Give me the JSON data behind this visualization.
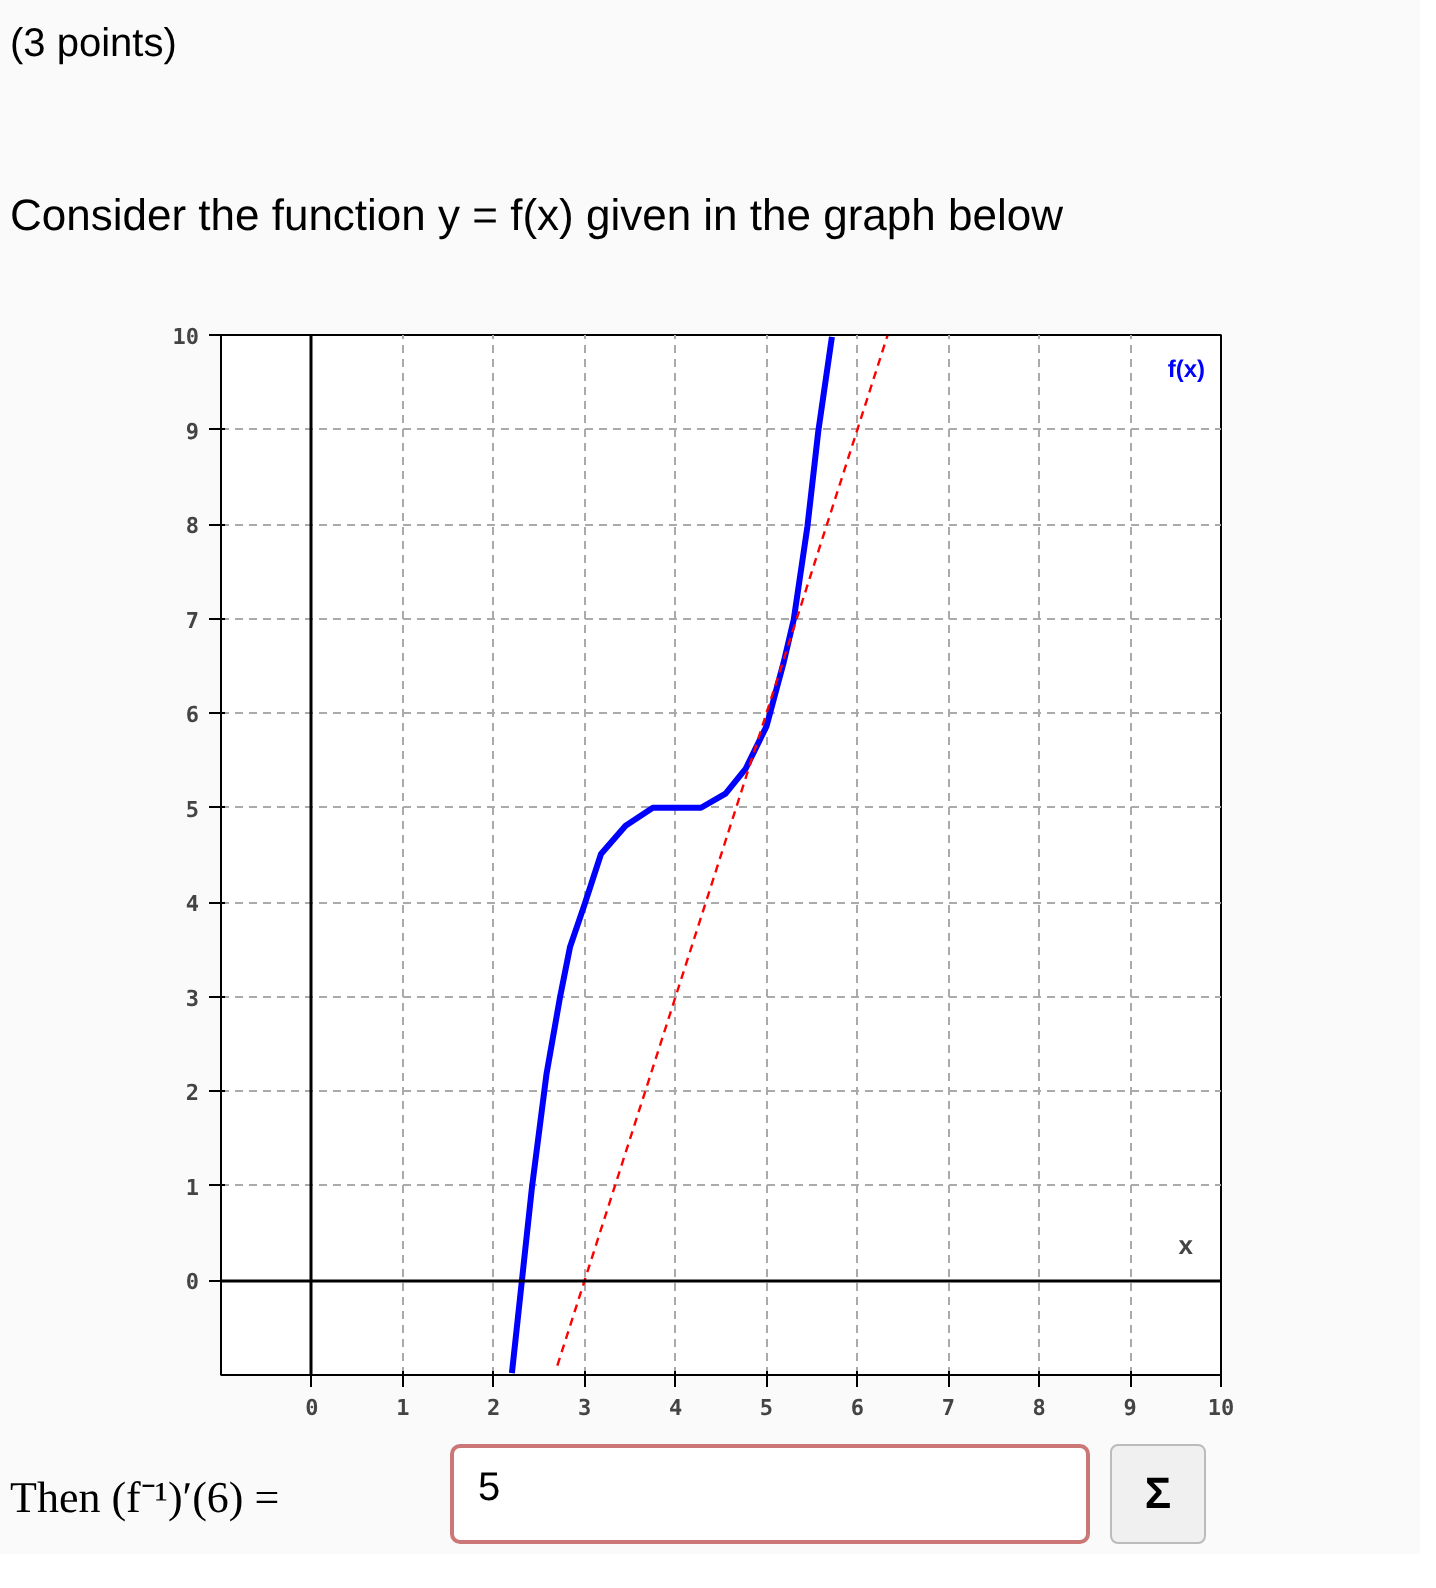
{
  "chart_data": {
    "type": "line",
    "title": "(3 points)",
    "subtitle": "Consider the function y = f(x) given in the graph below",
    "xlabel": "x",
    "xlim": [
      -1,
      10
    ],
    "ylim": [
      -1,
      10
    ],
    "xticks": [
      0,
      1,
      2,
      3,
      4,
      5,
      6,
      7,
      8,
      9,
      10
    ],
    "yticks": [
      0,
      1,
      2,
      3,
      4,
      5,
      6,
      7,
      8,
      9,
      10
    ],
    "grid": true,
    "marker": "none",
    "series": [
      {
        "name": "f(x)",
        "color": "#0000ff",
        "line_style": "solid",
        "x": [
          2.2,
          2.31,
          2.42,
          2.58,
          2.73,
          2.84,
          3.0,
          3.18,
          3.45,
          3.75,
          4.28,
          4.55,
          4.77,
          5.0,
          5.19,
          5.3,
          5.45,
          5.57,
          5.72
        ],
        "values": [
          -0.98,
          0,
          0.98,
          2.18,
          3.0,
          3.53,
          3.98,
          4.51,
          4.81,
          5.0,
          5.0,
          5.15,
          5.41,
          5.86,
          6.54,
          6.99,
          7.97,
          8.98,
          9.98
        ]
      },
      {
        "color": "#ff0000",
        "line_style": "dashed",
        "x": [
          2.7,
          6.33
        ],
        "values": [
          -0.9,
          9.99
        ]
      }
    ],
    "annotations": [
      "Then (f⁻¹)′(6) =",
      "5",
      "Σ"
    ]
  }
}
